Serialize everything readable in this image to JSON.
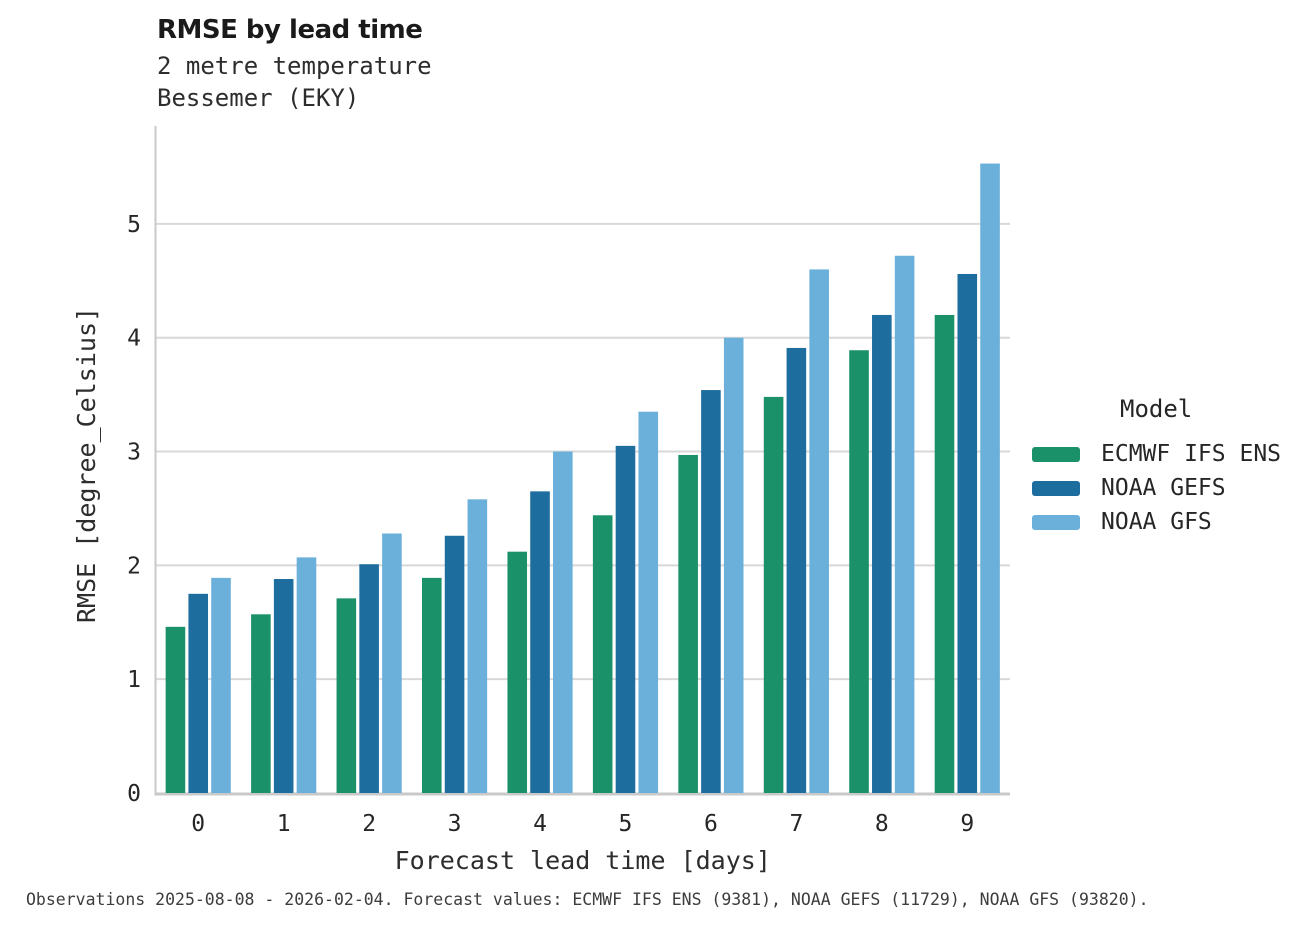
{
  "page": {
    "background": "#ffffff"
  },
  "header": {
    "title": "RMSE by lead time",
    "subtitle_line1": "2 metre temperature",
    "subtitle_line2": "Bessemer (EKY)"
  },
  "legend": {
    "title": "Model",
    "entries": [
      {
        "label": "ECMWF IFS ENS",
        "color": "#1a9168"
      },
      {
        "label": "NOAA GEFS",
        "color": "#1d6d9e"
      },
      {
        "label": "NOAA GFS",
        "color": "#6ab0da"
      }
    ]
  },
  "footer": {
    "text": "Observations 2025-08-08 - 2026-02-04. Forecast values: ECMWF IFS ENS (9381), NOAA GEFS (11729), NOAA GFS (93820)."
  },
  "chart_data": {
    "type": "bar",
    "title": "RMSE by lead time",
    "subtitle": [
      "2 metre temperature",
      "Bessemer (EKY)"
    ],
    "xlabel": "Forecast lead time [days]",
    "ylabel": "RMSE [degree_Celsius]",
    "categories": [
      "0",
      "1",
      "2",
      "3",
      "4",
      "5",
      "6",
      "7",
      "8",
      "9"
    ],
    "series": [
      {
        "name": "ECMWF IFS ENS",
        "color": "#1a9168",
        "values": [
          1.46,
          1.57,
          1.71,
          1.89,
          2.12,
          2.44,
          2.97,
          3.48,
          3.89,
          4.2
        ]
      },
      {
        "name": "NOAA GEFS",
        "color": "#1d6d9e",
        "values": [
          1.75,
          1.88,
          2.01,
          2.26,
          2.65,
          3.05,
          3.54,
          3.91,
          4.2,
          4.56
        ]
      },
      {
        "name": "NOAA GFS",
        "color": "#6ab0da",
        "values": [
          1.89,
          2.07,
          2.28,
          2.58,
          3.0,
          3.35,
          4.0,
          4.6,
          4.72,
          5.53
        ]
      }
    ],
    "yticks": [
      0,
      1,
      2,
      3,
      4,
      5
    ],
    "ylim": [
      0,
      5.86
    ],
    "grid": "horizontal",
    "legend_title": "Model",
    "legend_position": "right-center",
    "colors": {
      "gridline": "#d8d8d8",
      "spine": "#c9c9c9",
      "tick_text": "#262626",
      "axis_label_text": "#2d2d2d"
    }
  }
}
